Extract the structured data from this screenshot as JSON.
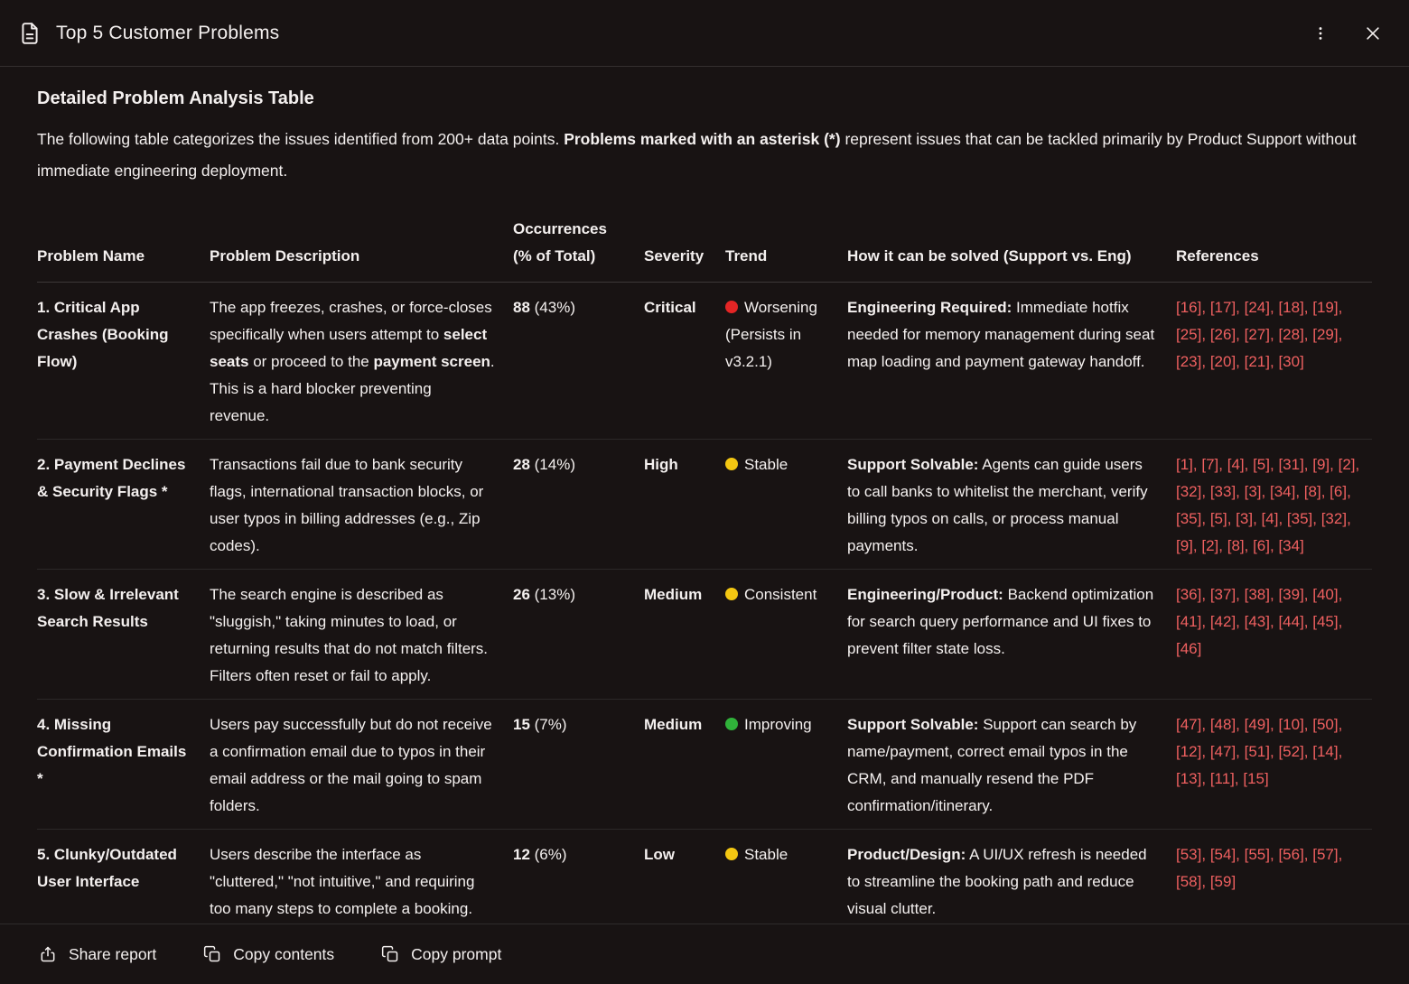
{
  "header": {
    "title": "Top 5 Customer Problems"
  },
  "intro": {
    "heading": "Detailed Problem Analysis Table",
    "body_pre": "The following table categorizes the issues identified from 200+ data points. ",
    "body_bold": "Problems marked with an asterisk (*)",
    "body_post": " represent issues that can be tackled primarily by Product Support without immediate engineering deployment."
  },
  "colors": {
    "reference_link": "#ef6060",
    "trend_worsening": "#e42525",
    "trend_stable": "#f3c712",
    "trend_improving": "#30b23a"
  },
  "table": {
    "columns": [
      "Problem Name",
      "Problem Description",
      "Occurrences (% of Total)",
      "Severity",
      "Trend",
      "How it can be solved (Support vs. Eng)",
      "References"
    ],
    "rows": [
      {
        "name": "1. Critical App Crashes (Booking Flow)",
        "description": [
          {
            "t": "The app freezes, crashes, or force-closes specifically when users attempt to "
          },
          {
            "t": "select seats",
            "b": true
          },
          {
            "t": " or proceed to the "
          },
          {
            "t": "payment screen",
            "b": true
          },
          {
            "t": ". This is a hard blocker preventing revenue."
          }
        ],
        "occurrences": "88",
        "occurrences_pct": "(43%)",
        "severity": "Critical",
        "trend_color": "#e42525",
        "trend_label": "Worsening (Persists in v3.2.1)",
        "solve_lead": "Engineering Required:",
        "solve_rest": " Immediate hotfix needed for memory management during seat map loading and payment gateway handoff.",
        "references": [
          "[16]",
          "[17]",
          "[24]",
          "[18]",
          "[19]",
          "[25]",
          "[26]",
          "[27]",
          "[28]",
          "[29]",
          "[23]",
          "[20]",
          "[21]",
          "[30]"
        ]
      },
      {
        "name": "2. Payment Declines & Security Flags *",
        "description": [
          {
            "t": "Transactions fail due to bank security flags, international transaction blocks, or user typos in billing addresses (e.g., Zip codes)."
          }
        ],
        "occurrences": "28",
        "occurrences_pct": "(14%)",
        "severity": "High",
        "trend_color": "#f3c712",
        "trend_label": "Stable",
        "solve_lead": "Support Solvable:",
        "solve_rest": " Agents can guide users to call banks to whitelist the merchant, verify billing typos on calls, or process manual payments.",
        "references": [
          "[1]",
          "[7]",
          "[4]",
          "[5]",
          "[31]",
          "[9]",
          "[2]",
          "[32]",
          "[33]",
          "[3]",
          "[34]",
          "[8]",
          "[6]",
          "[35]",
          "[5]",
          "[3]",
          "[4]",
          "[35]",
          "[32]",
          "[9]",
          "[2]",
          "[8]",
          "[6]",
          "[34]"
        ]
      },
      {
        "name": "3. Slow & Irrelevant Search Results",
        "description": [
          {
            "t": "The search engine is described as \"sluggish,\" taking minutes to load, or returning results that do not match filters. Filters often reset or fail to apply."
          }
        ],
        "occurrences": "26",
        "occurrences_pct": "(13%)",
        "severity": "Medium",
        "trend_color": "#f3c712",
        "trend_label": "Consistent",
        "solve_lead": "Engineering/Product:",
        "solve_rest": " Backend optimization for search query performance and UI fixes to prevent filter state loss.",
        "references": [
          "[36]",
          "[37]",
          "[38]",
          "[39]",
          "[40]",
          "[41]",
          "[42]",
          "[43]",
          "[44]",
          "[45]",
          "[46]"
        ]
      },
      {
        "name": "4. Missing Confirmation Emails *",
        "description": [
          {
            "t": "Users pay successfully but do not receive a confirmation email due to typos in their email address or the mail going to spam folders."
          }
        ],
        "occurrences": "15",
        "occurrences_pct": "(7%)",
        "severity": "Medium",
        "trend_color": "#30b23a",
        "trend_label": "Improving",
        "solve_lead": "Support Solvable:",
        "solve_rest": " Support can search by name/payment, correct email typos in the CRM, and manually resend the PDF confirmation/itinerary.",
        "references": [
          "[47]",
          "[48]",
          "[49]",
          "[10]",
          "[50]",
          "[12]",
          "[47]",
          "[51]",
          "[52]",
          "[14]",
          "[13]",
          "[11]",
          "[15]"
        ]
      },
      {
        "name": "5. Clunky/Outdated User Interface",
        "description": [
          {
            "t": "Users describe the interface as \"cluttered,\" \"not intuitive,\" and requiring too many steps to complete a booking."
          }
        ],
        "occurrences": "12",
        "occurrences_pct": "(6%)",
        "severity": "Low",
        "trend_color": "#f3c712",
        "trend_label": "Stable",
        "solve_lead": "Product/Design:",
        "solve_rest": " A UI/UX refresh is needed to streamline the booking path and reduce visual clutter.",
        "references": [
          "[53]",
          "[54]",
          "[55]",
          "[56]",
          "[57]",
          "[58]",
          "[59]"
        ]
      }
    ]
  },
  "footer": {
    "share_label": "Share report",
    "copy_contents_label": "Copy contents",
    "copy_prompt_label": "Copy prompt"
  }
}
